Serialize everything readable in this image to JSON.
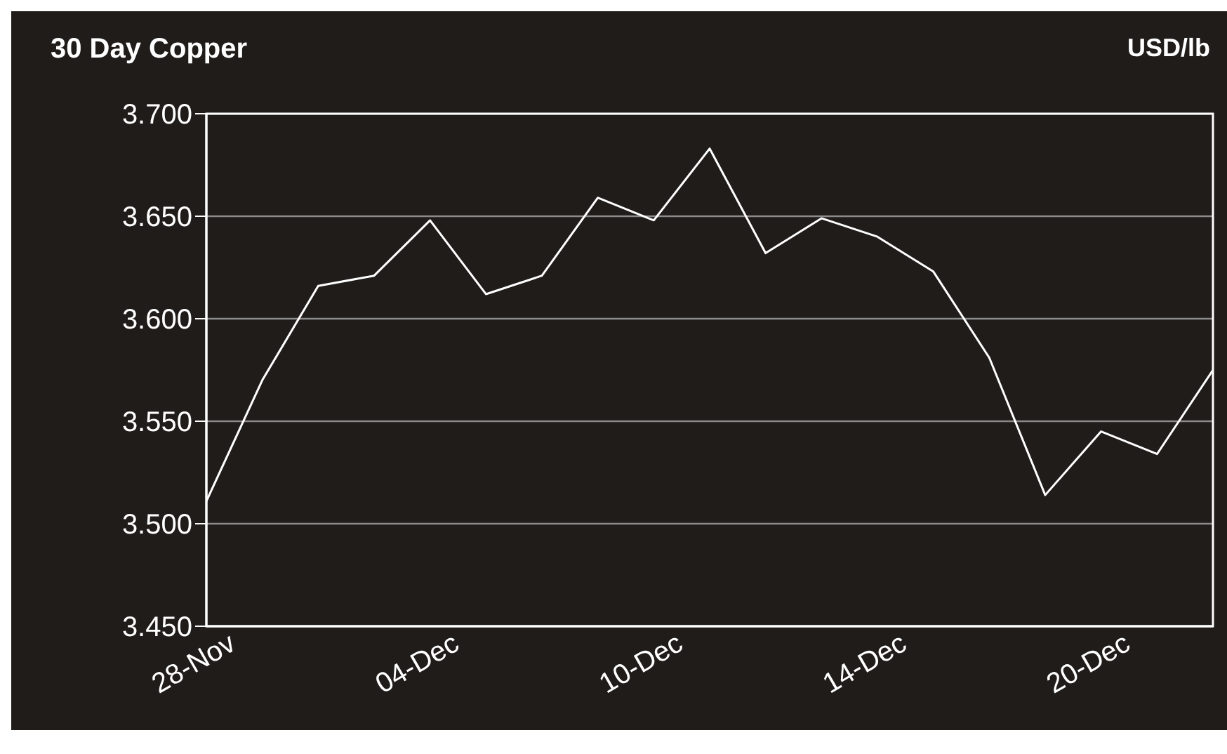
{
  "chart_data": {
    "type": "line",
    "title": "30 Day Copper",
    "ylabel": "USD/lb",
    "categories": [
      "28-Nov",
      null,
      null,
      null,
      "04-Dec",
      null,
      null,
      null,
      "10-Dec",
      null,
      null,
      null,
      "14-Dec",
      null,
      null,
      null,
      "20-Dec",
      null,
      null
    ],
    "series": [
      {
        "color": "#ffffff",
        "values": [
          3.511,
          3.57,
          3.616,
          3.621,
          3.648,
          3.612,
          3.621,
          3.659,
          3.648,
          3.683,
          3.632,
          3.649,
          3.64,
          3.623,
          3.581,
          3.514,
          3.545,
          3.534,
          3.575
        ]
      }
    ],
    "ylim": [
      3.45,
      3.7
    ],
    "yticks": [
      {
        "value": 3.45,
        "label": "3.450"
      },
      {
        "value": 3.5,
        "label": "3.500"
      },
      {
        "value": 3.55,
        "label": "3.550"
      },
      {
        "value": 3.6,
        "label": "3.600"
      },
      {
        "value": 3.65,
        "label": "3.650"
      },
      {
        "value": 3.7,
        "label": "3.700"
      }
    ],
    "grid": "y",
    "legend": false,
    "marker": "none",
    "line_style": "solid"
  }
}
